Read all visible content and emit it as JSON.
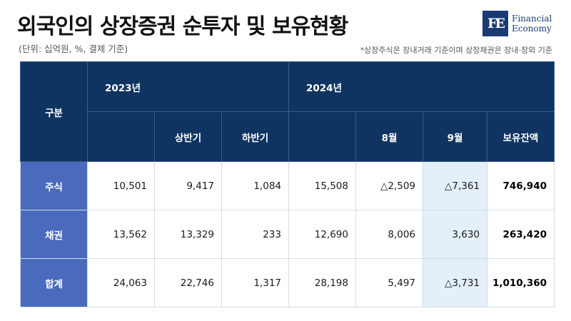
{
  "header": {
    "title": "외국인의 상장증권 순투자 및 보유현황",
    "unit": "(단위: 십억원, %, 결제 기준)",
    "note": "*상장주식은 장내거래 기준이며 상장채권은 장내·장외 기준"
  },
  "logo": {
    "mark": "FE",
    "line1": "Financial",
    "line2": "Economy"
  },
  "table": {
    "corner": "구분",
    "year_2023": "2023년",
    "year_2024": "2024년",
    "col_2023_h1": "상반기",
    "col_2023_h2": "하반기",
    "col_2024_aug": "8월",
    "col_2024_sep": "9월",
    "col_holdings": "보유잔액",
    "rows": [
      {
        "label": "주식",
        "total_2023": "10,501",
        "h1": "9,417",
        "h2": "1,084",
        "total_2024": "15,508",
        "aug": "△2,509",
        "sep": "△7,361",
        "holdings": "746,940"
      },
      {
        "label": "채권",
        "total_2023": "13,562",
        "h1": "13,329",
        "h2": "233",
        "total_2024": "12,690",
        "aug": "8,006",
        "sep": "3,630",
        "holdings": "263,420"
      },
      {
        "label": "합계",
        "total_2023": "24,063",
        "h1": "22,746",
        "h2": "1,317",
        "total_2024": "28,198",
        "aug": "5,497",
        "sep": "△3,731",
        "holdings": "1,010,360"
      }
    ]
  }
}
